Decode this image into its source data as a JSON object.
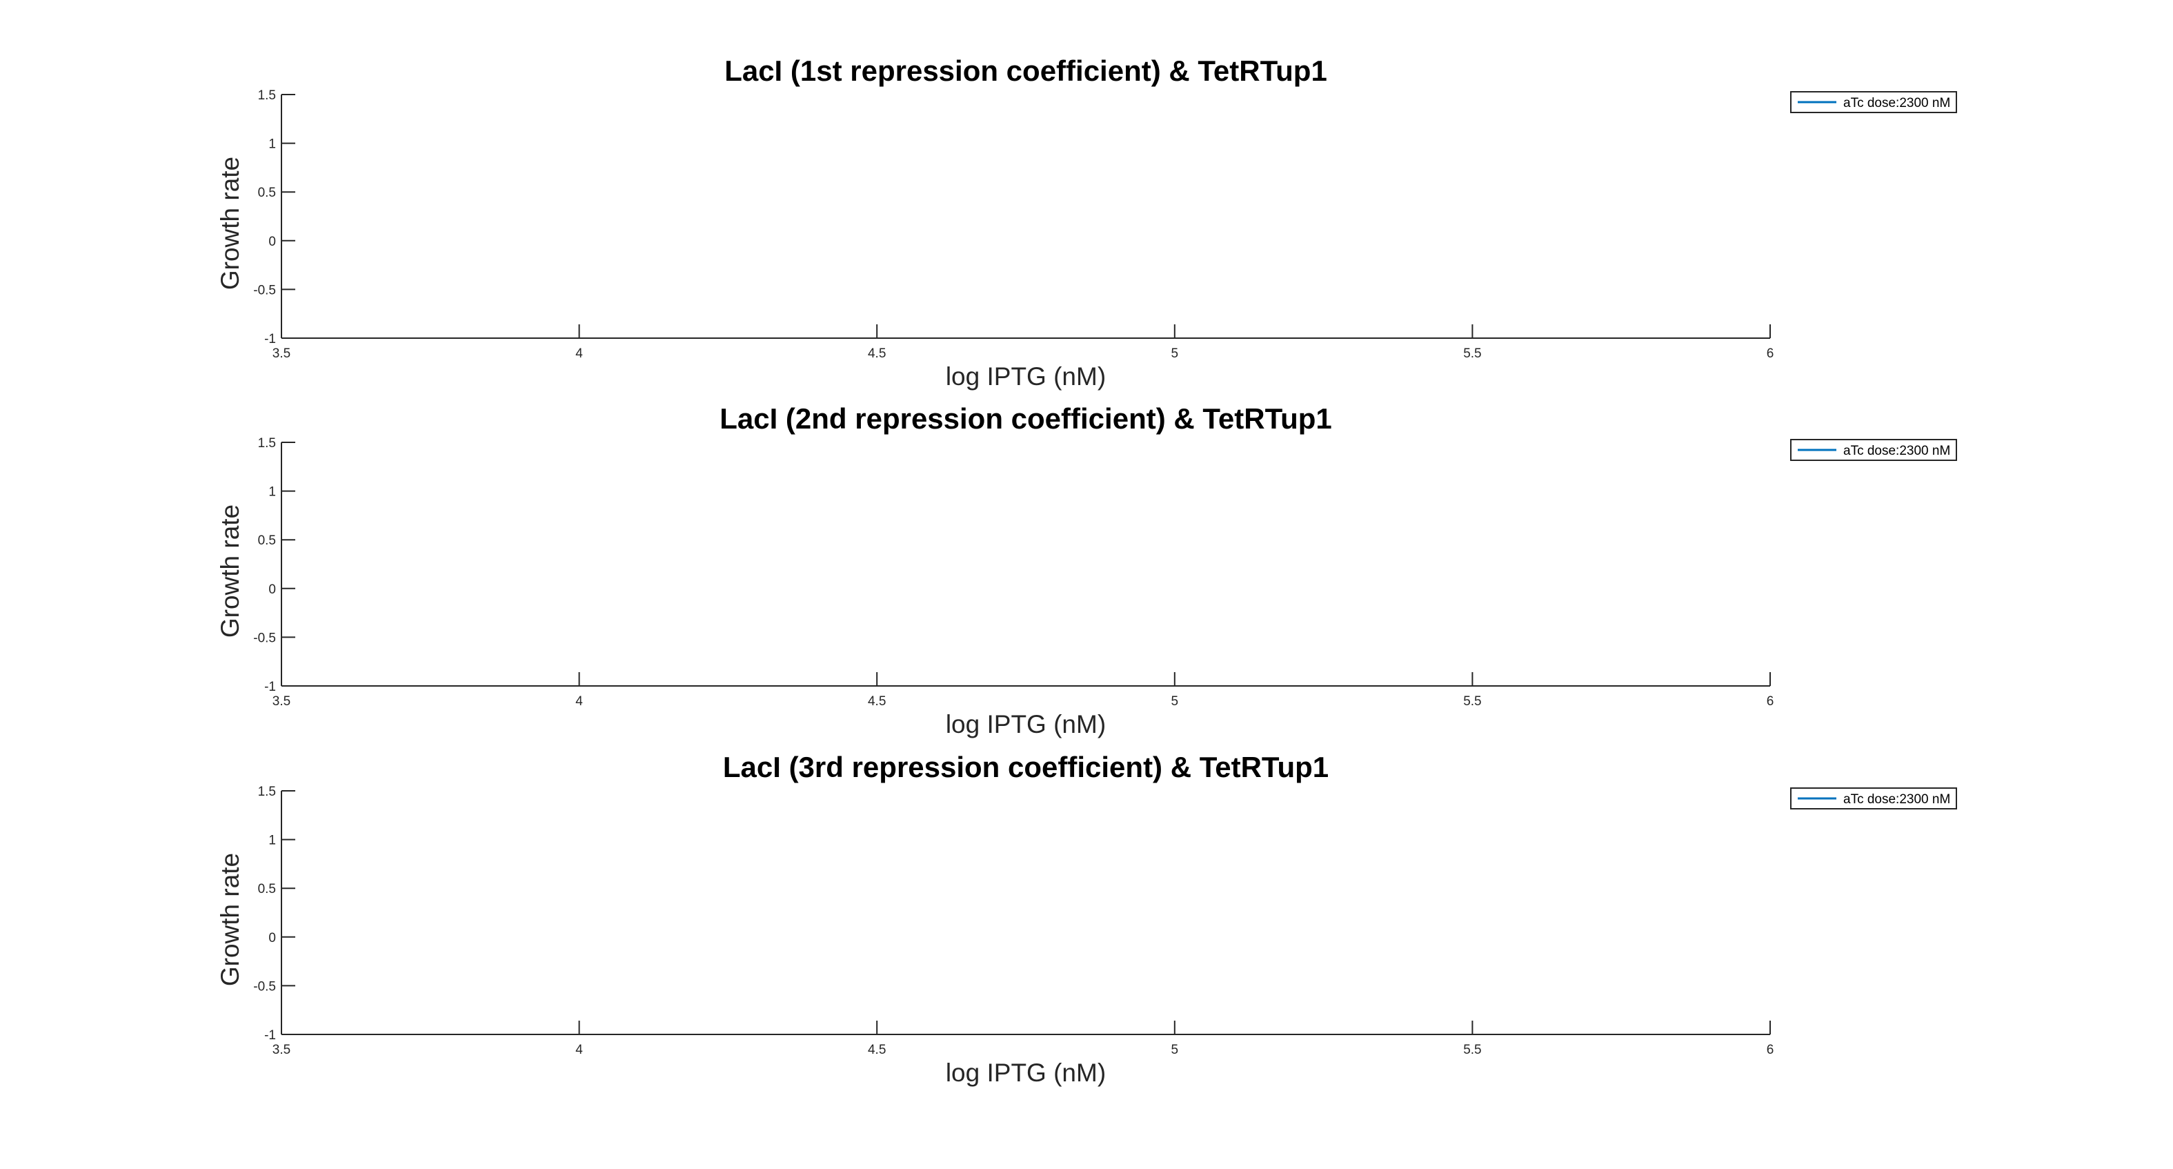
{
  "figure": {
    "background": "#ffffff",
    "axis_color": "#262626",
    "series_color": "#0072BD"
  },
  "chart_data": [
    {
      "type": "line",
      "title": "LacI (1st repression coefficient) & TetRTup1",
      "xlabel": "log IPTG (nM)",
      "ylabel": "Growth rate",
      "xlim": [
        3.5,
        6
      ],
      "ylim": [
        -1,
        1.5
      ],
      "xticks": [
        3.5,
        4,
        4.5,
        5,
        5.5,
        6
      ],
      "xtick_labels": [
        "3.5",
        "4",
        "4.5",
        "5",
        "5.5",
        "6"
      ],
      "yticks": [
        -1,
        -0.5,
        0,
        0.5,
        1,
        1.5
      ],
      "ytick_labels": [
        "-1",
        "-0.5",
        "0",
        "0.5",
        "1",
        "1.5"
      ],
      "grid": false,
      "legend_position": "outside-top-right",
      "series": [
        {
          "name": "aTc dose:2300 nM",
          "color": "#0072BD",
          "x": [],
          "y": []
        }
      ]
    },
    {
      "type": "line",
      "title": "LacI (2nd repression coefficient) & TetRTup1",
      "xlabel": "log IPTG (nM)",
      "ylabel": "Growth rate",
      "xlim": [
        3.5,
        6
      ],
      "ylim": [
        -1,
        1.5
      ],
      "xticks": [
        3.5,
        4,
        4.5,
        5,
        5.5,
        6
      ],
      "xtick_labels": [
        "3.5",
        "4",
        "4.5",
        "5",
        "5.5",
        "6"
      ],
      "yticks": [
        -1,
        -0.5,
        0,
        0.5,
        1,
        1.5
      ],
      "ytick_labels": [
        "-1",
        "-0.5",
        "0",
        "0.5",
        "1",
        "1.5"
      ],
      "grid": false,
      "legend_position": "outside-top-right",
      "series": [
        {
          "name": "aTc dose:2300 nM",
          "color": "#0072BD",
          "x": [],
          "y": []
        }
      ]
    },
    {
      "type": "line",
      "title": "LacI (3rd repression coefficient) & TetRTup1",
      "xlabel": "log IPTG (nM)",
      "ylabel": "Growth rate",
      "xlim": [
        3.5,
        6
      ],
      "ylim": [
        -1,
        1.5
      ],
      "xticks": [
        3.5,
        4,
        4.5,
        5,
        5.5,
        6
      ],
      "xtick_labels": [
        "3.5",
        "4",
        "4.5",
        "5",
        "5.5",
        "6"
      ],
      "yticks": [
        -1,
        -0.5,
        0,
        0.5,
        1,
        1.5
      ],
      "ytick_labels": [
        "-1",
        "-0.5",
        "0",
        "0.5",
        "1",
        "1.5"
      ],
      "grid": false,
      "legend_position": "outside-top-right",
      "series": [
        {
          "name": "aTc dose:2300 nM",
          "color": "#0072BD",
          "x": [],
          "y": []
        }
      ]
    }
  ]
}
